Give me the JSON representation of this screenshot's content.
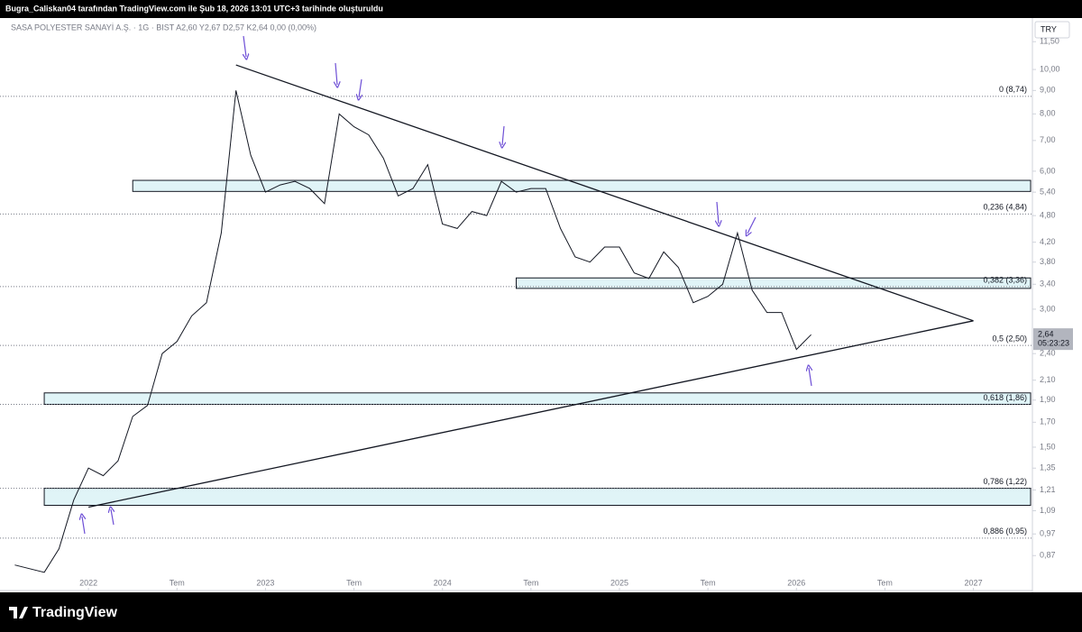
{
  "header": "Bugra_Caliskan04 tarafından TradingView.com ile Şub 18, 2026 13:01 UTC+3 tarihinde oluşturuldu",
  "footer_brand": "TradingView",
  "chart_data": {
    "type": "line",
    "title": "SASA POLYESTER SANAYİ A.Ş. · 1G · BIST  A2,60  Y2,67  D2,57  K2,64  0,00 (0,00%)",
    "currency": "TRY",
    "log_scale": true,
    "color": "#131722",
    "x": [
      "2021-08",
      "2021-10",
      "2021-11",
      "2021-12",
      "2022-01",
      "2022-02",
      "2022-03",
      "2022-04",
      "2022-05",
      "2022-06",
      "2022-07",
      "2022-08",
      "2022-09",
      "2022-10",
      "2022-11",
      "2022-12",
      "2023-01",
      "2023-02",
      "2023-03",
      "2023-04",
      "2023-05",
      "2023-06",
      "2023-07",
      "2023-08",
      "2023-09",
      "2023-10",
      "2023-11",
      "2023-12",
      "2024-01",
      "2024-02",
      "2024-03",
      "2024-04",
      "2024-05",
      "2024-06",
      "2024-07",
      "2024-08",
      "2024-09",
      "2024-10",
      "2024-11",
      "2024-12",
      "2025-01",
      "2025-02",
      "2025-03",
      "2025-04",
      "2025-05",
      "2025-06",
      "2025-07",
      "2025-08",
      "2025-09",
      "2025-10",
      "2025-11",
      "2025-12",
      "2026-01",
      "2026-02"
    ],
    "values": [
      0.83,
      0.8,
      0.9,
      1.15,
      1.35,
      1.3,
      1.4,
      1.75,
      1.85,
      2.4,
      2.55,
      2.9,
      3.1,
      4.4,
      9.0,
      6.5,
      5.4,
      5.6,
      5.7,
      5.5,
      5.1,
      8.0,
      7.5,
      7.2,
      6.4,
      5.3,
      5.5,
      6.2,
      4.6,
      4.5,
      4.9,
      4.8,
      5.7,
      5.4,
      5.5,
      5.5,
      4.5,
      3.9,
      3.8,
      4.1,
      4.1,
      3.6,
      3.5,
      4.0,
      3.7,
      3.1,
      3.2,
      3.4,
      4.4,
      3.3,
      2.95,
      2.95,
      2.45,
      2.64
    ],
    "last_price": {
      "value": 2.64,
      "label": "2,64"
    },
    "countdown": "05:23:23",
    "xlim": [
      "2021-07",
      "2027-05"
    ],
    "xticks": [
      {
        "value": "2022-01",
        "label": "2022"
      },
      {
        "value": "2022-07",
        "label": "Tem"
      },
      {
        "value": "2023-01",
        "label": "2023"
      },
      {
        "value": "2023-07",
        "label": "Tem"
      },
      {
        "value": "2024-01",
        "label": "2024"
      },
      {
        "value": "2024-07",
        "label": "Tem"
      },
      {
        "value": "2025-01",
        "label": "2025"
      },
      {
        "value": "2025-07",
        "label": "Tem"
      },
      {
        "value": "2026-01",
        "label": "2026"
      },
      {
        "value": "2026-07",
        "label": "Tem"
      },
      {
        "value": "2027-01",
        "label": "2027"
      }
    ],
    "ylim": [
      0.73,
      12.95
    ],
    "yticks": [
      {
        "value": 11.5,
        "label": "11,50"
      },
      {
        "value": 10,
        "label": "10,00"
      },
      {
        "value": 9,
        "label": "9,00"
      },
      {
        "value": 8,
        "label": "8,00"
      },
      {
        "value": 7,
        "label": "7,00"
      },
      {
        "value": 6,
        "label": "6,00"
      },
      {
        "value": 5.4,
        "label": "5,40"
      },
      {
        "value": 4.8,
        "label": "4,80"
      },
      {
        "value": 4.2,
        "label": "4,20"
      },
      {
        "value": 3.8,
        "label": "3,80"
      },
      {
        "value": 3.4,
        "label": "3,40"
      },
      {
        "value": 3,
        "label": "3,00"
      },
      {
        "value": 2.4,
        "label": "2,40"
      },
      {
        "value": 2.1,
        "label": "2,10"
      },
      {
        "value": 1.9,
        "label": "1,90"
      },
      {
        "value": 1.7,
        "label": "1,70"
      },
      {
        "value": 1.5,
        "label": "1,50"
      },
      {
        "value": 1.35,
        "label": "1,35"
      },
      {
        "value": 1.21,
        "label": "1,21"
      },
      {
        "value": 1.09,
        "label": "1,09"
      },
      {
        "value": 0.97,
        "label": "0,97"
      },
      {
        "value": 0.87,
        "label": "0,87"
      }
    ],
    "zones": [
      {
        "from": "2022-04",
        "low": 5.42,
        "high": 5.73
      },
      {
        "from": "2024-06",
        "low": 3.33,
        "high": 3.51
      },
      {
        "from": "2021-10",
        "low": 1.86,
        "high": 1.97
      },
      {
        "from": "2021-10",
        "low": 1.12,
        "high": 1.22
      }
    ],
    "zone_color": "#e0f4f7",
    "fib_levels": [
      {
        "value": 8.74,
        "label": "0 (8,74)"
      },
      {
        "value": 4.84,
        "label": "0,236 (4,84)"
      },
      {
        "value": 3.36,
        "label": "0,382 (3,36)"
      },
      {
        "value": 2.5,
        "label": "0,5 (2,50)"
      },
      {
        "value": 1.86,
        "label": "0,618 (1,86)"
      },
      {
        "value": 1.22,
        "label": "0,786 (1,22)"
      },
      {
        "value": 0.95,
        "label": "0,886 (0,95)"
      }
    ],
    "trendlines": [
      {
        "points": [
          [
            "2022-11",
            10.23
          ],
          [
            "2027-01",
            2.83
          ]
        ]
      },
      {
        "points": [
          [
            "2022-01",
            1.11
          ],
          [
            "2027-01",
            2.83
          ]
        ]
      }
    ]
  }
}
